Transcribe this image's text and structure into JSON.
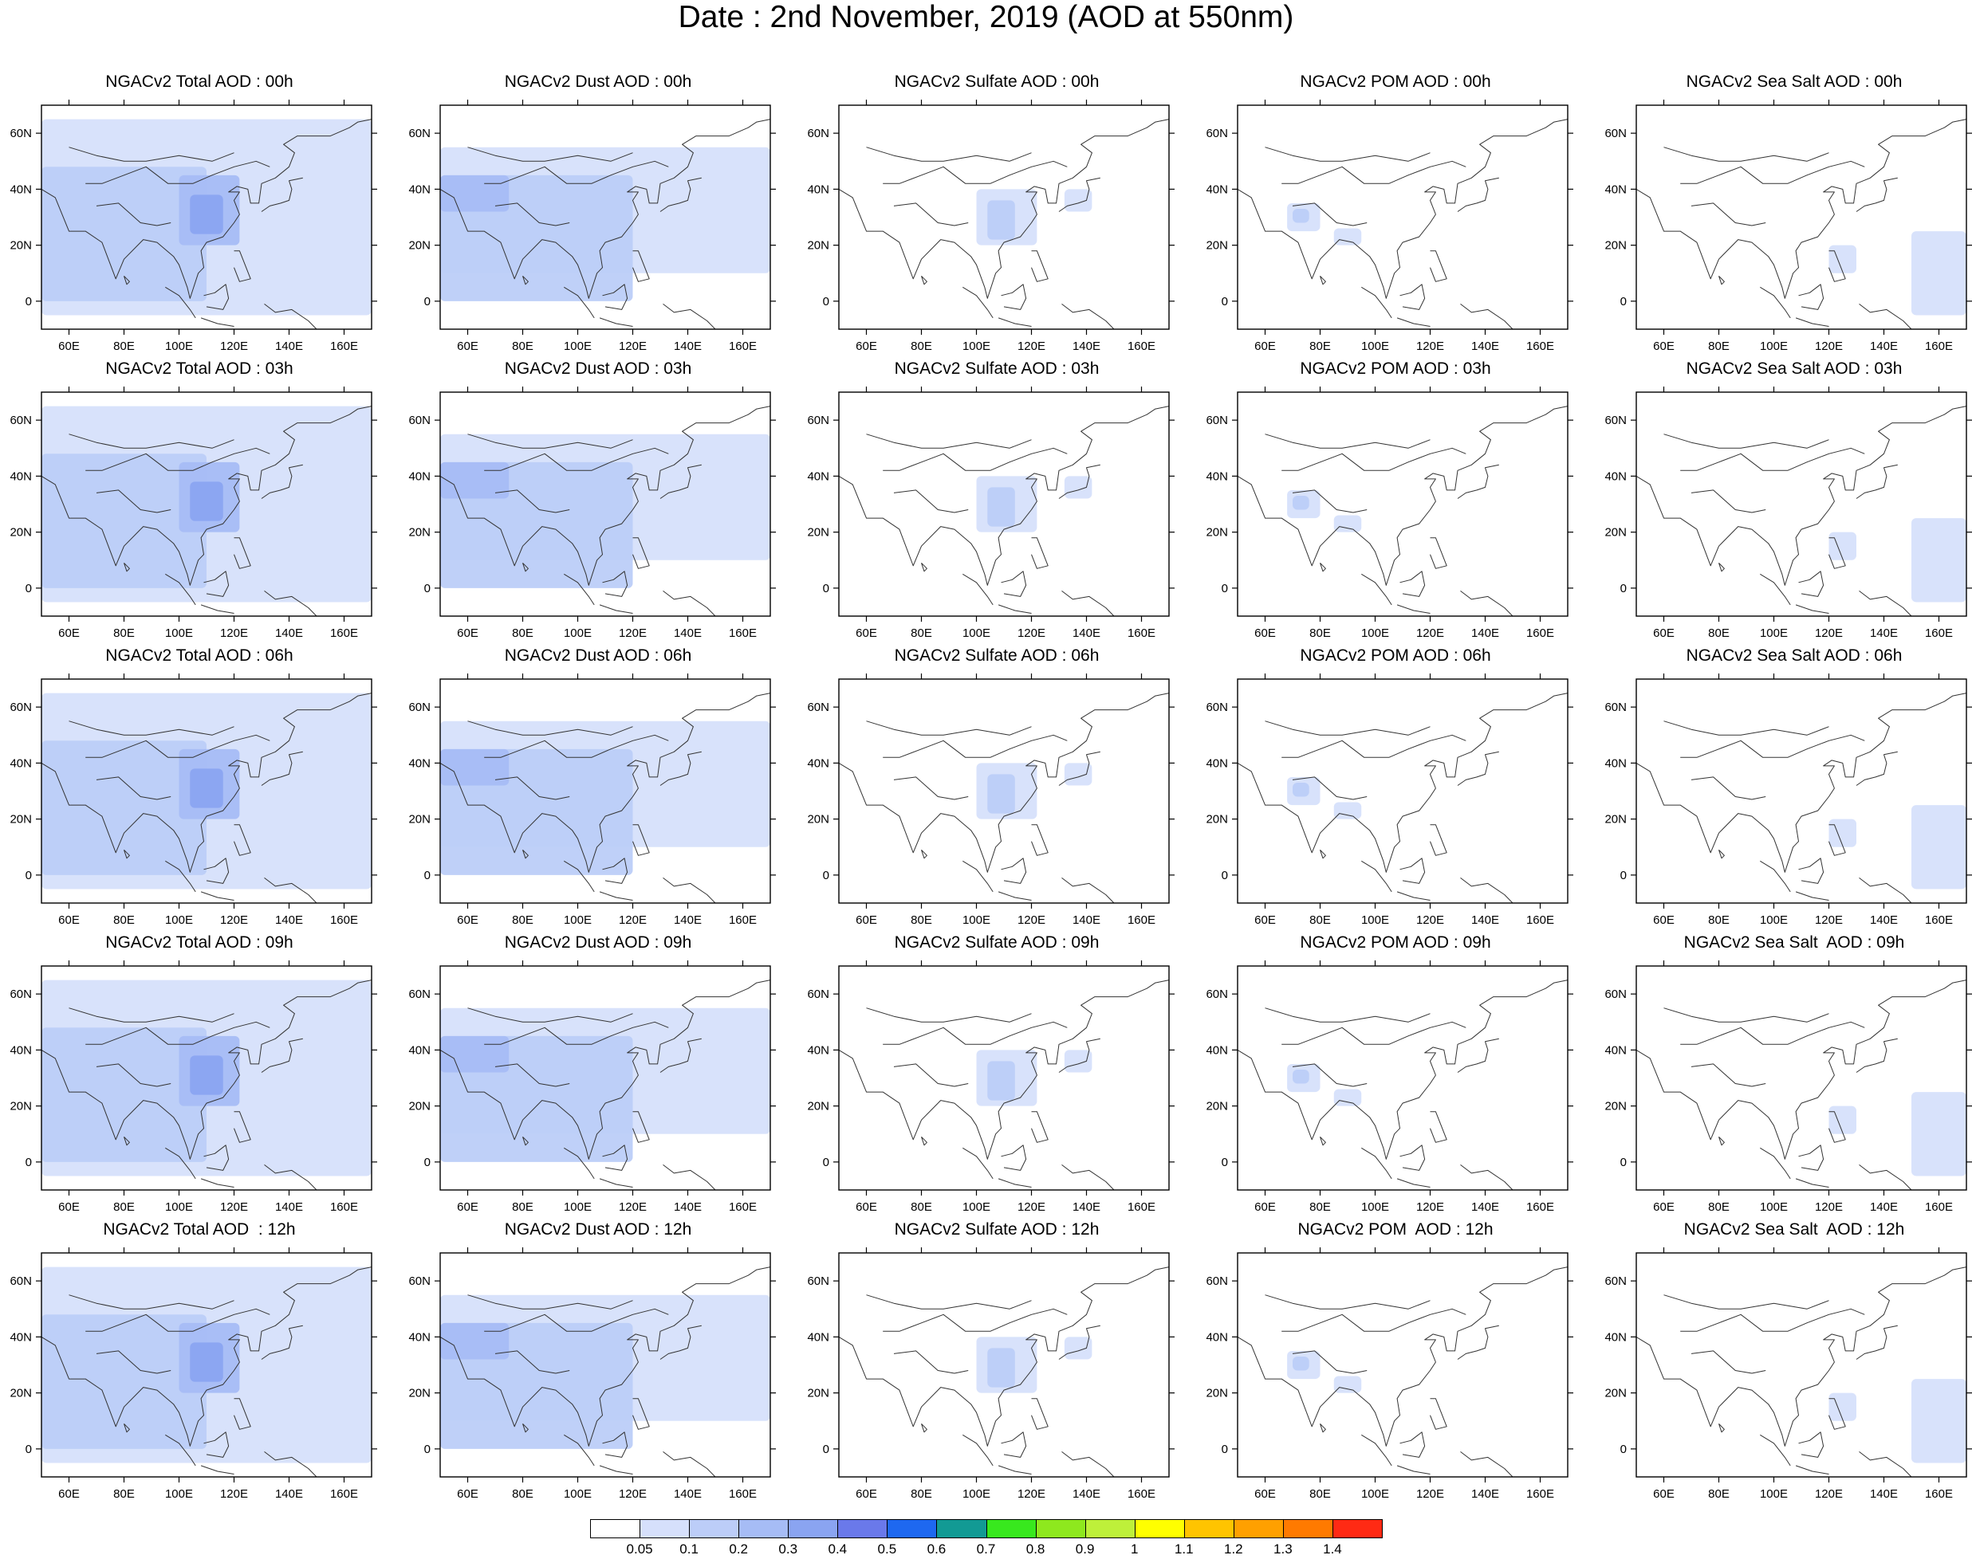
{
  "title": "Date : 2nd November, 2019 (AOD at 550nm)",
  "axes": {
    "lon_ticks": [
      "60E",
      "80E",
      "100E",
      "120E",
      "140E",
      "160E"
    ],
    "lat_ticks": [
      "60N",
      "40N",
      "20N",
      "0"
    ],
    "lon_range": [
      50,
      170
    ],
    "lat_range": [
      -10,
      70
    ]
  },
  "species": [
    "Total",
    "Dust",
    "Sulfate",
    "POM",
    "Sea Salt"
  ],
  "hours": [
    "00h",
    "03h",
    "06h",
    "09h",
    "12h"
  ],
  "panel_titles": [
    [
      "NGACv2 Total AOD : 00h",
      "NGACv2 Dust AOD : 00h",
      "NGACv2 Sulfate AOD : 00h",
      "NGACv2 POM AOD : 00h",
      "NGACv2 Sea Salt AOD : 00h"
    ],
    [
      "NGACv2 Total AOD : 03h",
      "NGACv2 Dust AOD : 03h",
      "NGACv2 Sulfate AOD : 03h",
      "NGACv2 POM AOD : 03h",
      "NGACv2 Sea Salt AOD : 03h"
    ],
    [
      "NGACv2 Total AOD : 06h",
      "NGACv2 Dust AOD : 06h",
      "NGACv2 Sulfate AOD : 06h",
      "NGACv2 POM AOD : 06h",
      "NGACv2 Sea Salt AOD : 06h"
    ],
    [
      "NGACv2 Total AOD : 09h",
      "NGACv2 Dust AOD : 09h",
      "NGACv2 Sulfate AOD : 09h",
      "NGACv2 POM AOD : 09h",
      "NGACv2 Sea Salt  AOD : 09h"
    ],
    [
      "NGACv2 Total AOD  : 12h",
      "NGACv2 Dust AOD : 12h",
      "NGACv2 Sulfate AOD : 12h",
      "NGACv2 POM  AOD : 12h",
      "NGACv2 Sea Salt  AOD : 12h"
    ]
  ],
  "colorbar": {
    "labels": [
      "0.05",
      "0.1",
      "0.2",
      "0.3",
      "0.4",
      "0.5",
      "0.6",
      "0.7",
      "0.8",
      "0.9",
      "1",
      "1.1",
      "1.2",
      "1.3",
      "1.4"
    ],
    "colors": [
      "#ffffff",
      "#d6e0fb",
      "#bccdf8",
      "#a6bcf5",
      "#8aa4f1",
      "#6a79ea",
      "#1e68f0",
      "#129a94",
      "#38e81e",
      "#8ee81e",
      "#bef03a",
      "#ffff00",
      "#ffc400",
      "#ffa000",
      "#ff7a00",
      "#ff2a14"
    ]
  },
  "aod_fields": {
    "Total": [
      {
        "lon": [
          50,
          170
        ],
        "lat": [
          -5,
          65
        ],
        "level": 1
      },
      {
        "lon": [
          50,
          110
        ],
        "lat": [
          0,
          48
        ],
        "level": 2
      },
      {
        "lon": [
          100,
          122
        ],
        "lat": [
          20,
          45
        ],
        "level": 3
      },
      {
        "lon": [
          104,
          116
        ],
        "lat": [
          24,
          38
        ],
        "level": 4
      }
    ],
    "Dust": [
      {
        "lon": [
          50,
          170
        ],
        "lat": [
          10,
          55
        ],
        "level": 1
      },
      {
        "lon": [
          50,
          120
        ],
        "lat": [
          0,
          45
        ],
        "level": 2
      },
      {
        "lon": [
          50,
          75
        ],
        "lat": [
          32,
          45
        ],
        "level": 3
      }
    ],
    "Sulfate": [
      {
        "lon": [
          100,
          122
        ],
        "lat": [
          20,
          40
        ],
        "level": 1
      },
      {
        "lon": [
          104,
          114
        ],
        "lat": [
          22,
          36
        ],
        "level": 2
      },
      {
        "lon": [
          132,
          142
        ],
        "lat": [
          32,
          40
        ],
        "level": 1
      }
    ],
    "POM": [
      {
        "lon": [
          68,
          80
        ],
        "lat": [
          25,
          35
        ],
        "level": 1
      },
      {
        "lon": [
          70,
          76
        ],
        "lat": [
          28,
          33
        ],
        "level": 2
      },
      {
        "lon": [
          85,
          95
        ],
        "lat": [
          20,
          26
        ],
        "level": 1
      }
    ],
    "Sea Salt": [
      {
        "lon": [
          150,
          170
        ],
        "lat": [
          -5,
          25
        ],
        "level": 1
      },
      {
        "lon": [
          120,
          130
        ],
        "lat": [
          10,
          20
        ],
        "level": 1
      }
    ]
  }
}
